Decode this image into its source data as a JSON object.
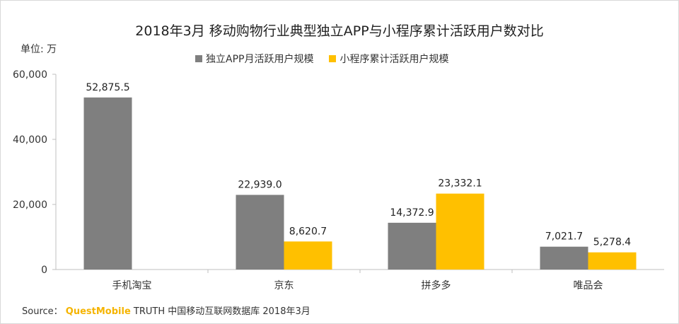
{
  "chart_data": {
    "type": "bar",
    "title": "2018年3月 移动购物行业典型独立APP与小程序累计活跃用户数对比",
    "ylabel": "单位: 万",
    "categories": [
      "手机淘宝",
      "京东",
      "拼多多",
      "唯品会"
    ],
    "series": [
      {
        "name": "独立APP月活跃用户规模",
        "color": "#7f7f7f",
        "values": [
          52875.5,
          22939.0,
          14372.9,
          7021.7
        ],
        "labels": [
          "52,875.5",
          "22,939.0",
          "14,372.9",
          "7,021.7"
        ]
      },
      {
        "name": "小程序累计活跃用户规模",
        "color": "#ffc000",
        "values": [
          null,
          8620.7,
          23332.1,
          5278.4
        ],
        "labels": [
          "",
          "8,620.7",
          "23,332.1",
          "5,278.4"
        ]
      }
    ],
    "ylim": [
      0,
      60000
    ],
    "yticks": [
      0,
      20000,
      40000,
      60000
    ],
    "ytick_labels": [
      "0",
      "20,000",
      "40,000",
      "60,000"
    ],
    "grid": false,
    "legend": "top"
  },
  "source": {
    "prefix": "Source：",
    "brand": "QuestMobile",
    "rest": "TRUTH 中国移动互联网数据库 2018年3月"
  }
}
